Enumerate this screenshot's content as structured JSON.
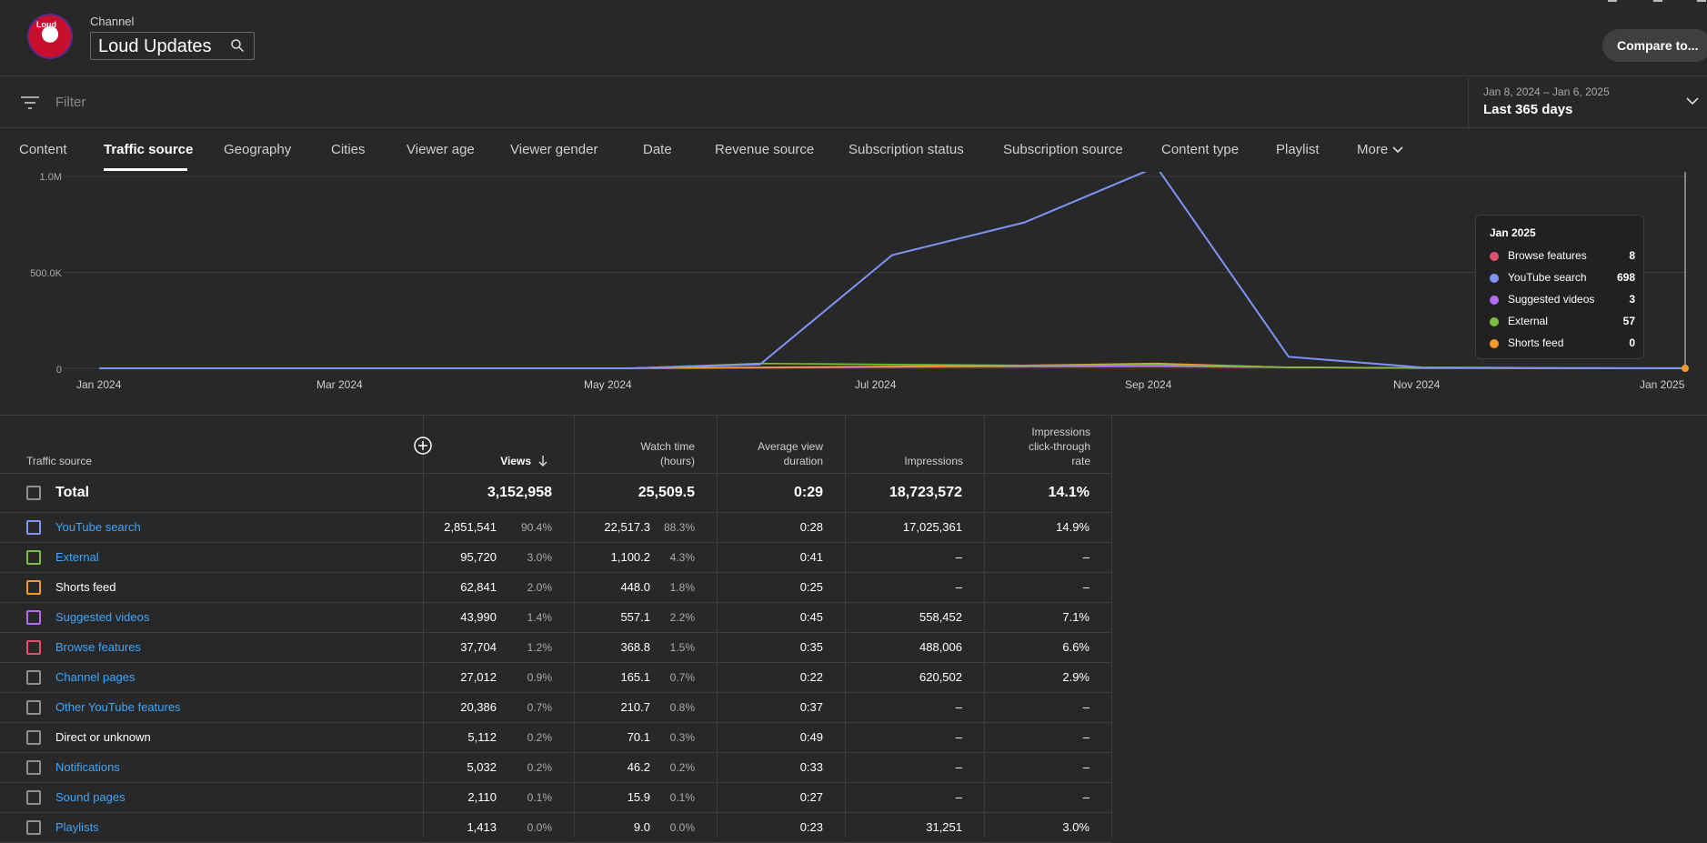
{
  "header": {
    "channel_label": "Channel",
    "channel_name": "Loud Updates",
    "avatar_text": "Loud",
    "compare_button": "Compare to..."
  },
  "filter": {
    "placeholder": "Filter"
  },
  "date": {
    "range": "Jan 8, 2024 – Jan 6, 2025",
    "label": "Last 365 days"
  },
  "tabs": [
    {
      "label": "Content"
    },
    {
      "label": "Traffic source",
      "active": true
    },
    {
      "label": "Geography"
    },
    {
      "label": "Cities"
    },
    {
      "label": "Viewer age"
    },
    {
      "label": "Viewer gender"
    },
    {
      "label": "Date"
    },
    {
      "label": "Revenue source"
    },
    {
      "label": "Subscription status"
    },
    {
      "label": "Subscription source"
    },
    {
      "label": "Content type"
    },
    {
      "label": "Playlist"
    },
    {
      "label": "More"
    }
  ],
  "chart_data": {
    "type": "line",
    "y_tick_labels": [
      "1.0M",
      "500.0K",
      "0"
    ],
    "ylim": [
      0,
      1000000
    ],
    "x_tick_labels": [
      "Jan 2024",
      "Mar 2024",
      "May 2024",
      "Jul 2024",
      "Sep 2024",
      "Nov 2024",
      "Jan 2025"
    ],
    "x": [
      "Jan 2024",
      "Feb 2024",
      "Mar 2024",
      "Apr 2024",
      "May 2024",
      "Jun 2024",
      "Jul 2024",
      "Aug 2024",
      "Sep 2024",
      "Oct 2024",
      "Nov 2024",
      "Dec 2024",
      "Jan 2025"
    ],
    "series": [
      {
        "name": "YouTube search",
        "color": "#8094f8",
        "values": [
          0,
          0,
          0,
          0,
          0,
          20000,
          590000,
          760000,
          1050000,
          60000,
          5000,
          2000,
          698
        ]
      },
      {
        "name": "External",
        "color": "#7cbf3f",
        "values": [
          0,
          0,
          0,
          0,
          0,
          25000,
          20000,
          15000,
          20000,
          5000,
          1000,
          500,
          57
        ]
      },
      {
        "name": "Shorts feed",
        "color": "#f59b2a",
        "values": [
          0,
          0,
          0,
          0,
          0,
          5000,
          10000,
          15000,
          25000,
          5000,
          1000,
          500,
          0
        ]
      },
      {
        "name": "Suggested videos",
        "color": "#b56cf0",
        "values": [
          0,
          0,
          0,
          0,
          0,
          3000,
          8000,
          10000,
          12000,
          5000,
          2000,
          500,
          3
        ]
      },
      {
        "name": "Browse features",
        "color": "#e0516a",
        "values": [
          0,
          0,
          0,
          0,
          0,
          2000,
          6000,
          8000,
          10000,
          5000,
          2000,
          500,
          8
        ]
      }
    ],
    "tooltip": {
      "title": "Jan 2025",
      "rows": [
        {
          "label": "Browse features",
          "value": "8",
          "color": "#e0516a"
        },
        {
          "label": "YouTube search",
          "value": "698",
          "color": "#8094f8"
        },
        {
          "label": "Suggested videos",
          "value": "3",
          "color": "#b56cf0"
        },
        {
          "label": "External",
          "value": "57",
          "color": "#7cbf3f"
        },
        {
          "label": "Shorts feed",
          "value": "0",
          "color": "#f59b2a"
        }
      ]
    }
  },
  "table": {
    "headers": {
      "source": "Traffic source",
      "views": "Views",
      "watch_time_1": "Watch time",
      "watch_time_2": "(hours)",
      "avd_1": "Average view",
      "avd_2": "duration",
      "impressions": "Impressions",
      "ctr_1": "Impressions",
      "ctr_2": "click-through",
      "ctr_3": "rate"
    },
    "total": {
      "label": "Total",
      "views": "3,152,958",
      "watch": "25,509.5",
      "avd": "0:29",
      "impressions": "18,723,572",
      "ctr": "14.1%"
    },
    "rows": [
      {
        "label": "YouTube search",
        "link": true,
        "color": "#8094f8",
        "views": "2,851,541",
        "views_pct": "90.4%",
        "watch": "22,517.3",
        "watch_pct": "88.3%",
        "avd": "0:28",
        "impressions": "17,025,361",
        "ctr": "14.9%"
      },
      {
        "label": "External",
        "link": true,
        "color": "#7cbf3f",
        "views": "95,720",
        "views_pct": "3.0%",
        "watch": "1,100.2",
        "watch_pct": "4.3%",
        "avd": "0:41",
        "impressions": "–",
        "ctr": "–"
      },
      {
        "label": "Shorts feed",
        "link": false,
        "color": "#f59b2a",
        "views": "62,841",
        "views_pct": "2.0%",
        "watch": "448.0",
        "watch_pct": "1.8%",
        "avd": "0:25",
        "impressions": "–",
        "ctr": "–"
      },
      {
        "label": "Suggested videos",
        "link": true,
        "color": "#b56cf0",
        "views": "43,990",
        "views_pct": "1.4%",
        "watch": "557.1",
        "watch_pct": "2.2%",
        "avd": "0:45",
        "impressions": "558,452",
        "ctr": "7.1%"
      },
      {
        "label": "Browse features",
        "link": true,
        "color": "#e0516a",
        "views": "37,704",
        "views_pct": "1.2%",
        "watch": "368.8",
        "watch_pct": "1.5%",
        "avd": "0:35",
        "impressions": "488,006",
        "ctr": "6.6%"
      },
      {
        "label": "Channel pages",
        "link": true,
        "color": "#909090",
        "views": "27,012",
        "views_pct": "0.9%",
        "watch": "165.1",
        "watch_pct": "0.7%",
        "avd": "0:22",
        "impressions": "620,502",
        "ctr": "2.9%"
      },
      {
        "label": "Other YouTube features",
        "link": true,
        "color": "#909090",
        "views": "20,386",
        "views_pct": "0.7%",
        "watch": "210.7",
        "watch_pct": "0.8%",
        "avd": "0:37",
        "impressions": "–",
        "ctr": "–"
      },
      {
        "label": "Direct or unknown",
        "link": false,
        "color": "#909090",
        "views": "5,112",
        "views_pct": "0.2%",
        "watch": "70.1",
        "watch_pct": "0.3%",
        "avd": "0:49",
        "impressions": "–",
        "ctr": "–"
      },
      {
        "label": "Notifications",
        "link": true,
        "color": "#909090",
        "views": "5,032",
        "views_pct": "0.2%",
        "watch": "46.2",
        "watch_pct": "0.2%",
        "avd": "0:33",
        "impressions": "–",
        "ctr": "–"
      },
      {
        "label": "Sound pages",
        "link": true,
        "color": "#909090",
        "views": "2,110",
        "views_pct": "0.1%",
        "watch": "15.9",
        "watch_pct": "0.1%",
        "avd": "0:27",
        "impressions": "–",
        "ctr": "–"
      },
      {
        "label": "Playlists",
        "link": true,
        "color": "#909090",
        "views": "1,413",
        "views_pct": "0.0%",
        "watch": "9.0",
        "watch_pct": "0.0%",
        "avd": "0:23",
        "impressions": "31,251",
        "ctr": "3.0%"
      }
    ]
  }
}
